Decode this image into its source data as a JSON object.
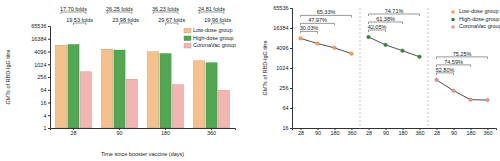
{
  "chart_data": [
    {
      "type": "bar",
      "x_label": "Time since booster vaccine (days)",
      "y_label": "GMTs of RBD-IgG titre",
      "categories": [
        "28",
        "90",
        "180",
        "360"
      ],
      "series": [
        {
          "name": "Low-dose group",
          "color": "#f6c08c",
          "values": [
            7965,
            5250,
            3985,
            1489
          ]
        },
        {
          "name": "High-dose group",
          "color": "#52a852",
          "values": [
            8789,
            4796,
            3264,
            1198
          ]
        },
        {
          "name": "CoronaVac group",
          "color": "#f2b5b2",
          "values": [
            450,
            200,
            110,
            60
          ]
        }
      ],
      "log": "y",
      "ylim": [
        1,
        65536
      ],
      "yticks": [
        1,
        4,
        16,
        64,
        256,
        1024,
        4096,
        16384,
        65536
      ],
      "legend": "upper right",
      "annotations": [
        {
          "label": "17.70 folds",
          "category": 0,
          "from": 0,
          "to": 2
        },
        {
          "label": "19.53 folds",
          "category": 0,
          "from": 1,
          "to": 2
        },
        {
          "label": "26.25 folds",
          "category": 1,
          "from": 0,
          "to": 2
        },
        {
          "label": "23.98 folds",
          "category": 1,
          "from": 1,
          "to": 2
        },
        {
          "label": "36.23 folds",
          "category": 2,
          "from": 0,
          "to": 2
        },
        {
          "label": "29.67 folds",
          "category": 2,
          "from": 1,
          "to": 2
        },
        {
          "label": "24.81 folds",
          "category": 3,
          "from": 0,
          "to": 2
        },
        {
          "label": "19.96 folds",
          "category": 3,
          "from": 1,
          "to": 2
        }
      ]
    },
    {
      "type": "line",
      "y_label": "GMTs of RBD-IgG titre",
      "categories": [
        "28",
        "90",
        "180",
        "360",
        "28",
        "90",
        "180",
        "360",
        "28",
        "90",
        "180",
        "360"
      ],
      "series": [
        {
          "name": "Low-dose group",
          "color": "#f0a24e",
          "marker": "circle",
          "values": [
            7965,
            5574,
            4144,
            2761,
            null,
            null,
            null,
            null,
            null,
            null,
            null,
            null
          ],
          "annotations": [
            {
              "label": "65.33%",
              "from": 0,
              "to": 3
            },
            {
              "label": "47.97%",
              "from": 0,
              "to": 2
            },
            {
              "label": "30.03%",
              "from": 0,
              "to": 1
            }
          ]
        },
        {
          "name": "High-dose group",
          "color": "#2e8b2e",
          "marker": "circle",
          "values": [
            null,
            null,
            null,
            null,
            8789,
            5093,
            3395,
            2223,
            null,
            null,
            null,
            null
          ],
          "annotations": [
            {
              "label": "74.71%",
              "from": 4,
              "to": 7
            },
            {
              "label": "61.38%",
              "from": 4,
              "to": 6
            },
            {
              "label": "42.05%",
              "from": 4,
              "to": 5
            }
          ]
        },
        {
          "name": "CoronaVac group",
          "color": "#e8958f",
          "marker": "circle",
          "values": [
            null,
            null,
            null,
            null,
            null,
            null,
            null,
            null,
            450,
            212,
            114,
            111
          ],
          "annotations": [
            {
              "label": "75.25%",
              "from": 8,
              "to": 11
            },
            {
              "label": "74.59%",
              "from": 8,
              "to": 10
            },
            {
              "label": "52.80%",
              "from": 8,
              "to": 9
            }
          ]
        }
      ],
      "log": "y",
      "ylim": [
        16,
        65536
      ],
      "yticks": [
        16,
        64,
        256,
        1024,
        4096,
        16384,
        65536
      ],
      "legend": "upper right"
    }
  ]
}
